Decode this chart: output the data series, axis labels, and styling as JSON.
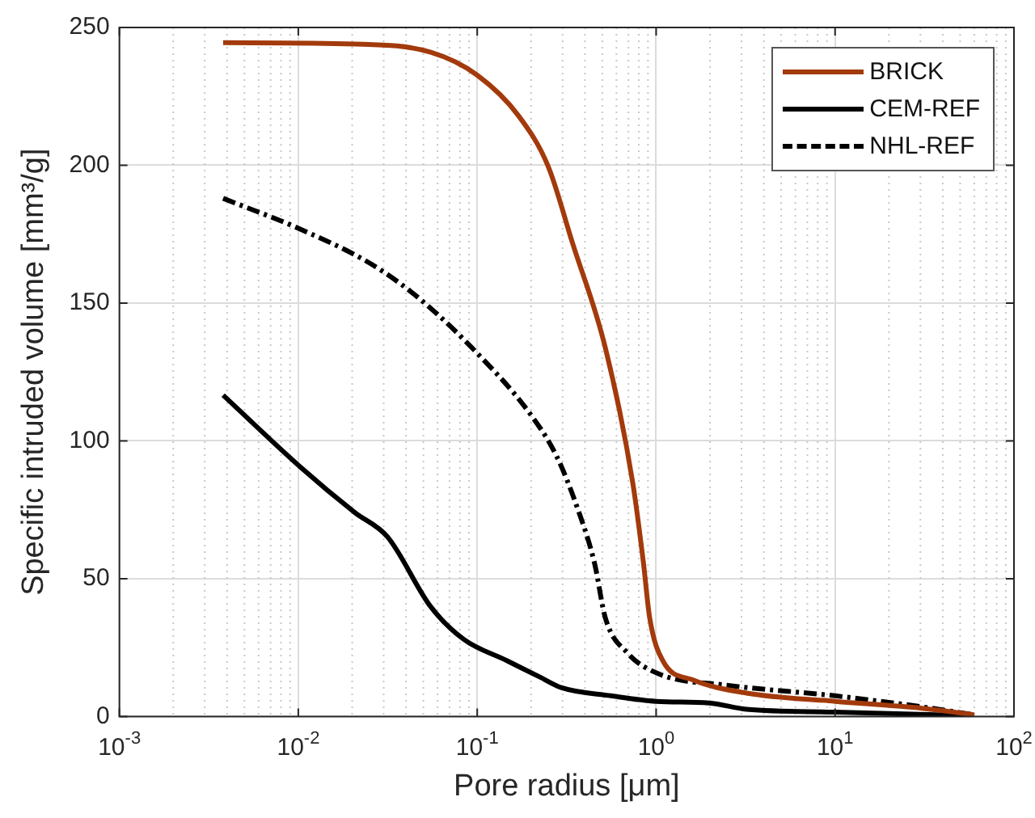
{
  "chart_data": {
    "type": "line",
    "xlabel": "Pore radius [μm]",
    "ylabel": "Specific intruded volume [mm³/g]",
    "log": "x",
    "xlim": [
      0.001,
      100
    ],
    "xticks": [
      {
        "value": 0.001,
        "label": "10$^{-3}$"
      },
      {
        "value": 0.01,
        "label": "10$^{-2}$"
      },
      {
        "value": 0.1,
        "label": "10$^{-1}$"
      },
      {
        "value": 1,
        "label": "10$^{0}$"
      },
      {
        "value": 10,
        "label": "10$^{1}$"
      },
      {
        "value": 100,
        "label": "10$^{2}$"
      }
    ],
    "ylim": [
      0,
      250
    ],
    "yticks": [
      0,
      50,
      100,
      150,
      200,
      250
    ],
    "grid": true,
    "legend": "top right",
    "marker": "none",
    "series": [
      {
        "name": "BRICK",
        "color": "#a33a0c",
        "line_style": "solid",
        "x": [
          0.0038,
          0.0207,
          0.055,
          0.1,
          0.17,
          0.25,
          0.34,
          0.52,
          0.74,
          0.85,
          0.92,
          1.09,
          1.6,
          3.2,
          10,
          30.6,
          60
        ],
        "values": [
          244.5,
          244,
          241,
          232.7,
          218,
          199.4,
          172,
          133.8,
          84.8,
          55.5,
          35.8,
          20.2,
          13.3,
          8.5,
          5.5,
          3,
          0.6
        ]
      },
      {
        "name": "CEM-REF",
        "color": "#000000",
        "line_style": "solid",
        "x": [
          0.0038,
          0.0102,
          0.0207,
          0.0315,
          0.055,
          0.084,
          0.147,
          0.224,
          0.297,
          0.558,
          1,
          1.98,
          3.2,
          10,
          60
        ],
        "values": [
          116.6,
          90.7,
          74,
          65.2,
          39.8,
          28,
          20.2,
          14.3,
          10.4,
          7.5,
          5.5,
          4.9,
          2.6,
          1.6,
          0.3
        ]
      },
      {
        "name": "NHL-REF",
        "color": "#000000",
        "line_style": "dashed",
        "x": [
          0.0038,
          0.0102,
          0.0255,
          0.048,
          0.1,
          0.195,
          0.277,
          0.366,
          0.453,
          0.52,
          0.69,
          1.05,
          2.44,
          10,
          30.6,
          60
        ],
        "values": [
          188,
          176.9,
          164.2,
          151.4,
          131.8,
          110.3,
          94.6,
          75,
          55.5,
          35.8,
          23.1,
          15.3,
          11.4,
          7.5,
          3.5,
          0.6
        ]
      }
    ]
  }
}
